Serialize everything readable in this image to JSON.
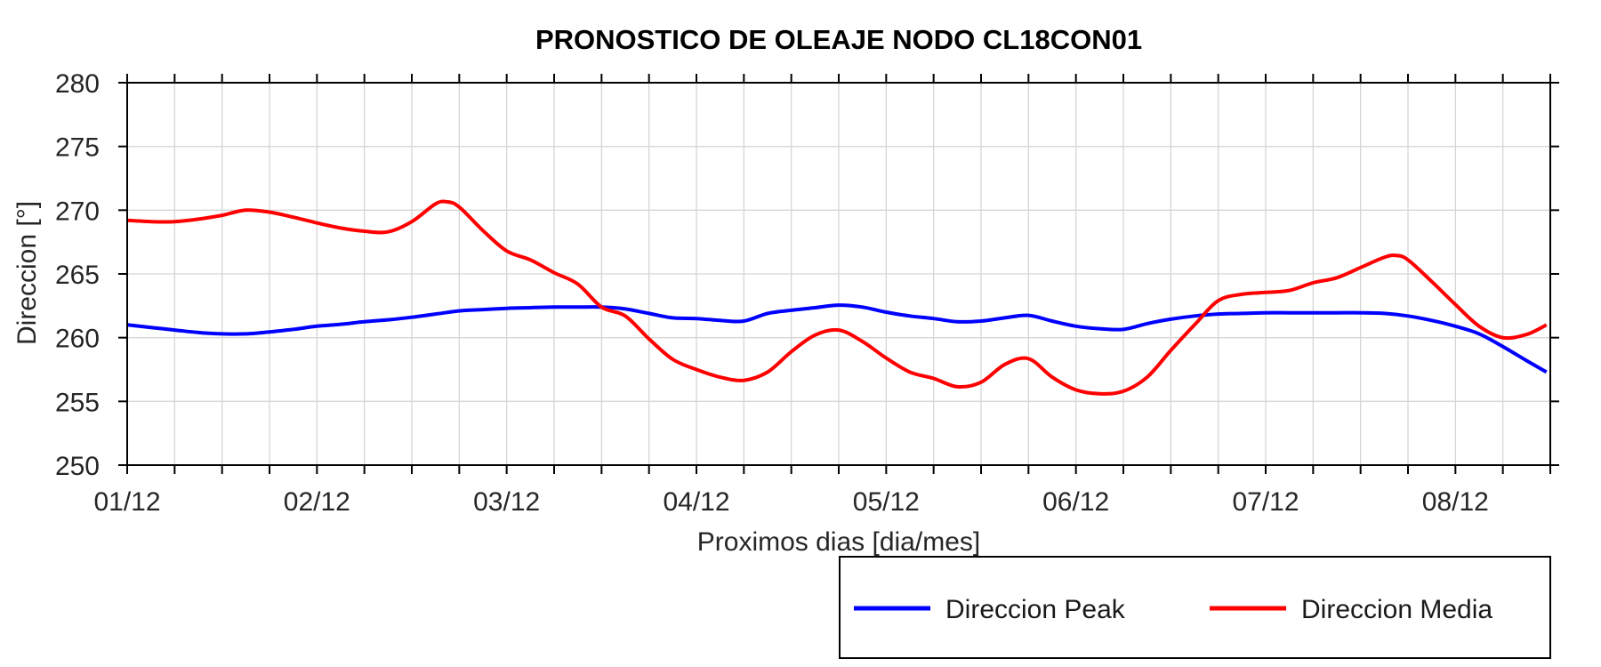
{
  "figure": {
    "background_color": "#ffffff"
  },
  "chart_data": {
    "type": "line",
    "title": "PRONOSTICO DE OLEAJE NODO CL18CON01",
    "xlabel": "Proximos dias [dia/mes]",
    "ylabel": "Direccion [°]",
    "xlim": [
      1,
      8.5
    ],
    "ylim": [
      250,
      280
    ],
    "y_ticks": [
      250,
      255,
      260,
      265,
      270,
      275,
      280
    ],
    "x_major_ticks": [
      {
        "x": 1,
        "label": "01/12"
      },
      {
        "x": 2,
        "label": "02/12"
      },
      {
        "x": 3,
        "label": "03/12"
      },
      {
        "x": 4,
        "label": "04/12"
      },
      {
        "x": 5,
        "label": "05/12"
      },
      {
        "x": 6,
        "label": "06/12"
      },
      {
        "x": 7,
        "label": "07/12"
      },
      {
        "x": 8,
        "label": "08/12"
      }
    ],
    "x_minor_step": 0.25,
    "grid": true,
    "grid_color": "#d6d6d6",
    "axis_color": "#000000",
    "tick_direction": "out",
    "legend_position": "below-plot-right",
    "series": [
      {
        "name": "Direccion Peak",
        "color": "#0000ff",
        "x": [
          1,
          1.125,
          1.25,
          1.375,
          1.5,
          1.625,
          1.75,
          1.875,
          2,
          2.125,
          2.25,
          2.375,
          2.5,
          2.625,
          2.75,
          2.875,
          3,
          3.125,
          3.25,
          3.375,
          3.5,
          3.625,
          3.75,
          3.875,
          4,
          4.125,
          4.25,
          4.375,
          4.5,
          4.625,
          4.75,
          4.875,
          5,
          5.125,
          5.25,
          5.375,
          5.5,
          5.625,
          5.75,
          5.875,
          6,
          6.125,
          6.25,
          6.375,
          6.5,
          6.625,
          6.75,
          6.875,
          7,
          7.125,
          7.25,
          7.375,
          7.5,
          7.625,
          7.75,
          7.875,
          8,
          8.125,
          8.25,
          8.375,
          8.48
        ],
        "values": [
          261.0,
          260.8,
          260.6,
          260.4,
          260.3,
          260.3,
          260.45,
          260.65,
          260.9,
          261.05,
          261.25,
          261.4,
          261.6,
          261.85,
          262.1,
          262.2,
          262.3,
          262.35,
          262.4,
          262.4,
          262.4,
          262.25,
          261.9,
          261.55,
          261.5,
          261.35,
          261.3,
          261.9,
          262.15,
          262.35,
          262.55,
          262.4,
          262.0,
          261.7,
          261.5,
          261.25,
          261.3,
          261.55,
          261.75,
          261.3,
          260.9,
          260.7,
          260.65,
          261.1,
          261.45,
          261.7,
          261.85,
          261.9,
          261.95,
          261.95,
          261.95,
          261.95,
          261.95,
          261.9,
          261.7,
          261.35,
          260.9,
          260.3,
          259.3,
          258.2,
          257.3
        ]
      },
      {
        "name": "Direccion Media",
        "color": "#ff0000",
        "x": [
          1,
          1.125,
          1.25,
          1.375,
          1.5,
          1.625,
          1.75,
          1.875,
          2,
          2.125,
          2.25,
          2.375,
          2.5,
          2.625,
          2.6875,
          2.75,
          2.875,
          3,
          3.125,
          3.25,
          3.375,
          3.5,
          3.625,
          3.75,
          3.875,
          4,
          4.125,
          4.25,
          4.375,
          4.5,
          4.625,
          4.75,
          4.875,
          5,
          5.125,
          5.25,
          5.375,
          5.5,
          5.625,
          5.75,
          5.875,
          6,
          6.125,
          6.25,
          6.375,
          6.5,
          6.625,
          6.75,
          6.875,
          7,
          7.125,
          7.25,
          7.375,
          7.5,
          7.625,
          7.6875,
          7.75,
          7.875,
          8,
          8.125,
          8.25,
          8.375,
          8.48
        ],
        "values": [
          269.2,
          269.1,
          269.1,
          269.3,
          269.6,
          270.0,
          269.85,
          269.45,
          269.0,
          268.6,
          268.35,
          268.3,
          269.1,
          270.5,
          270.65,
          270.25,
          268.4,
          266.8,
          266.1,
          265.1,
          264.2,
          262.4,
          261.7,
          259.9,
          258.3,
          257.5,
          256.9,
          256.65,
          257.3,
          258.9,
          260.2,
          260.6,
          259.7,
          258.4,
          257.3,
          256.8,
          256.15,
          256.5,
          257.9,
          258.35,
          256.9,
          255.9,
          255.6,
          255.8,
          256.9,
          259.0,
          261.0,
          262.9,
          263.4,
          263.55,
          263.7,
          264.3,
          264.7,
          265.5,
          266.3,
          266.45,
          266.1,
          264.4,
          262.6,
          260.9,
          260.0,
          260.25,
          261.0
        ]
      }
    ],
    "legend_entries": [
      "Direccion Peak",
      "Direccion Media"
    ]
  }
}
